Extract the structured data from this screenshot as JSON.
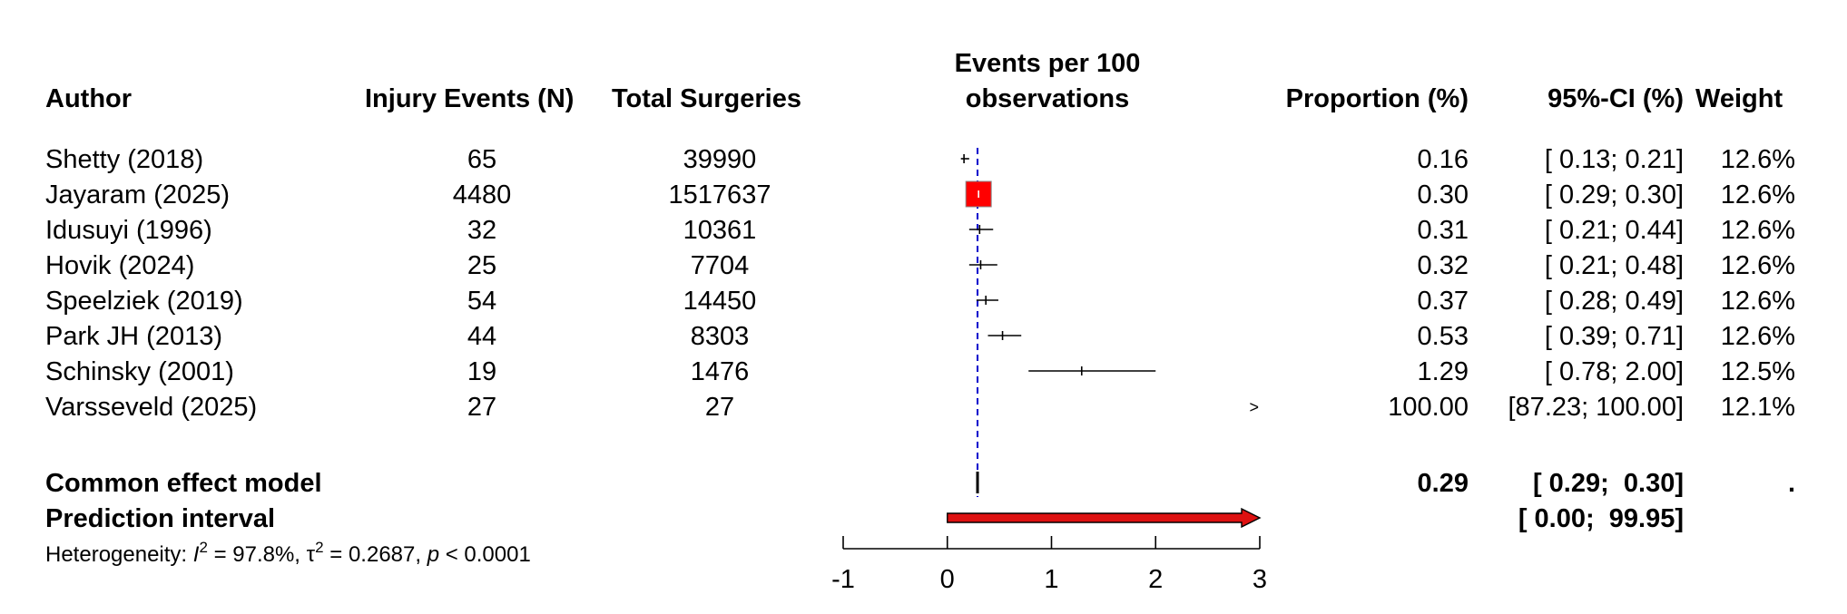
{
  "headers": {
    "author": "Author",
    "events": "Injury Events (N)",
    "total": "Total Surgeries",
    "plot_title_line1": "Events per 100",
    "plot_title_line2": "observations",
    "proportion": "Proportion (%)",
    "ci": "95%-CI (%)",
    "weight": "Weight"
  },
  "studies": [
    {
      "author": "Shetty (2018)",
      "events": "65",
      "total": "39990",
      "prop": "0.16",
      "ci": "[ 0.13;  0.21]",
      "weight": "12.6%"
    },
    {
      "author": "Jayaram (2025)",
      "events": "4480",
      "total": "1517637",
      "prop": "0.30",
      "ci": "[ 0.29;  0.30]",
      "weight": "12.6%"
    },
    {
      "author": "Idusuyi (1996)",
      "events": "32",
      "total": "10361",
      "prop": "0.31",
      "ci": "[ 0.21;  0.44]",
      "weight": "12.6%"
    },
    {
      "author": "Hovik (2024)",
      "events": "25",
      "total": "7704",
      "prop": "0.32",
      "ci": "[ 0.21;  0.48]",
      "weight": "12.6%"
    },
    {
      "author": "Speelziek (2019)",
      "events": "54",
      "total": "14450",
      "prop": "0.37",
      "ci": "[ 0.28;  0.49]",
      "weight": "12.6%"
    },
    {
      "author": "Park JH (2013)",
      "events": "44",
      "total": "8303",
      "prop": "0.53",
      "ci": "[ 0.39;  0.71]",
      "weight": "12.6%"
    },
    {
      "author": "Schinsky (2001)",
      "events": "19",
      "total": "1476",
      "prop": "1.29",
      "ci": "[ 0.78;  2.00]",
      "weight": "12.5%"
    },
    {
      "author": "Varsseveld (2025)",
      "events": "27",
      "total": "27",
      "prop": "100.00",
      "ci": "[87.23; 100.00]",
      "weight": "12.1%"
    }
  ],
  "common_model": {
    "label": "Common effect model",
    "prop": "0.29",
    "ci": "[ 0.29;  0.30]",
    "weight": "."
  },
  "prediction": {
    "label": "Prediction interval",
    "ci": "[ 0.00;  99.95]"
  },
  "heterogeneity": {
    "prefix": "Heterogeneity: ",
    "i2_symbol": "I",
    "i2": " = 97.8%, ",
    "tau_symbol": "τ",
    "tau": " = 0.2687, ",
    "p_symbol": "p",
    "p": " < 0.0001"
  },
  "colors": {
    "box": "#ff0000",
    "prediction_bar": "#dd1111",
    "reference_line": "#0000cc"
  },
  "chart_data": {
    "type": "forest",
    "title": "Events per 100 observations",
    "xlim": [
      -1,
      3
    ],
    "xticks": [
      -1,
      0,
      1,
      2,
      3
    ],
    "ticklabels": [
      "-1",
      "0",
      "1",
      "2",
      "3"
    ],
    "reference_line": 0.29,
    "reference_style": "dashed",
    "points": [
      {
        "label": "Shetty (2018)",
        "est": 0.16,
        "lo": 0.13,
        "hi": 0.21,
        "weight": 12.6
      },
      {
        "label": "Jayaram (2025)",
        "est": 0.3,
        "lo": 0.29,
        "hi": 0.3,
        "weight": 12.6
      },
      {
        "label": "Idusuyi (1996)",
        "est": 0.31,
        "lo": 0.21,
        "hi": 0.44,
        "weight": 12.6
      },
      {
        "label": "Hovik (2024)",
        "est": 0.32,
        "lo": 0.21,
        "hi": 0.48,
        "weight": 12.6
      },
      {
        "label": "Speelziek (2019)",
        "est": 0.37,
        "lo": 0.28,
        "hi": 0.49,
        "weight": 12.6
      },
      {
        "label": "Park JH (2013)",
        "est": 0.53,
        "lo": 0.39,
        "hi": 0.71,
        "weight": 12.6
      },
      {
        "label": "Schinsky (2001)",
        "est": 1.29,
        "lo": 0.78,
        "hi": 2.0,
        "weight": 12.5
      },
      {
        "label": "Varsseveld (2025)",
        "est": 100.0,
        "lo": 87.23,
        "hi": 100.0,
        "weight": 12.1,
        "off_scale": true
      }
    ],
    "summary": {
      "label": "Common effect model",
      "est": 0.29,
      "lo": 0.29,
      "hi": 0.3
    },
    "prediction_interval": {
      "label": "Prediction interval",
      "lo": 0.0,
      "hi": 99.95
    }
  }
}
